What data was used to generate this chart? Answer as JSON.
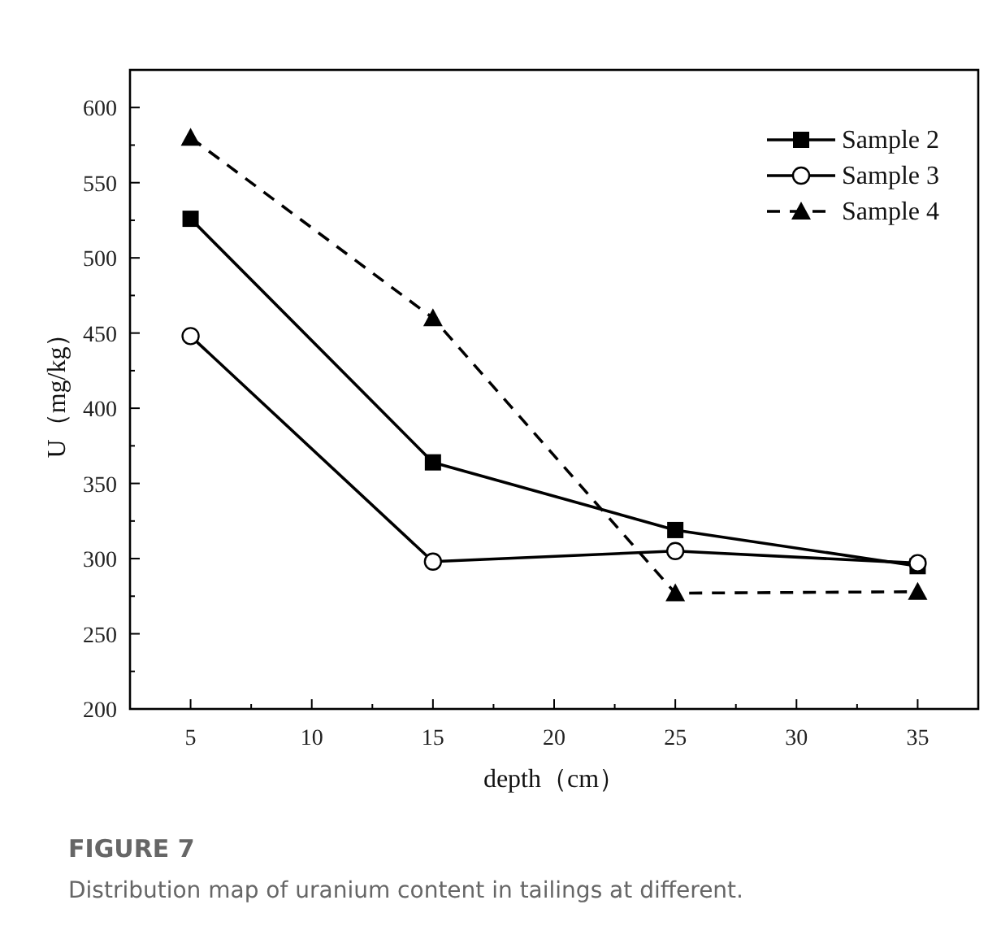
{
  "chart_data": {
    "type": "line",
    "xlabel": "depth（cm）",
    "ylabel": "U（mg/kg）",
    "x": [
      5,
      15,
      25,
      35
    ],
    "series": [
      {
        "name": "Sample 2",
        "color": "#000000",
        "marker": "square",
        "line_style": "solid",
        "values": [
          526,
          364,
          319,
          295
        ]
      },
      {
        "name": "Sample 3",
        "color": "#000000",
        "marker": "circle",
        "line_style": "solid",
        "values": [
          448,
          298,
          305,
          297
        ]
      },
      {
        "name": "Sample 4",
        "color": "#000000",
        "marker": "triangle",
        "line_style": "dashed",
        "values": [
          580,
          460,
          277,
          278
        ]
      }
    ],
    "xlim": [
      2.5,
      37.5
    ],
    "ylim": [
      200,
      625
    ],
    "xticks": [
      {
        "value": 2.5,
        "label": null
      },
      5,
      {
        "value": 7.5,
        "label": null
      },
      10,
      {
        "value": 12.5,
        "label": null
      },
      15,
      {
        "value": 17.5,
        "label": null
      },
      20,
      {
        "value": 22.5,
        "label": null
      },
      25,
      {
        "value": 27.5,
        "label": null
      },
      30,
      {
        "value": 32.5,
        "label": null
      },
      35,
      {
        "value": 37.5,
        "label": null
      }
    ],
    "yticks": [
      200,
      {
        "value": 225,
        "label": null
      },
      250,
      {
        "value": 275,
        "label": null
      },
      300,
      {
        "value": 325,
        "label": null
      },
      350,
      {
        "value": 375,
        "label": null
      },
      400,
      {
        "value": 425,
        "label": null
      },
      450,
      {
        "value": 475,
        "label": null
      },
      500,
      {
        "value": 525,
        "label": null
      },
      550,
      {
        "value": 575,
        "label": null
      },
      600,
      {
        "value": 625,
        "label": null
      }
    ],
    "legend": "top right",
    "annotations": [
      "FIGURE 7",
      "Distribution map of uranium content in tailings at different."
    ]
  }
}
